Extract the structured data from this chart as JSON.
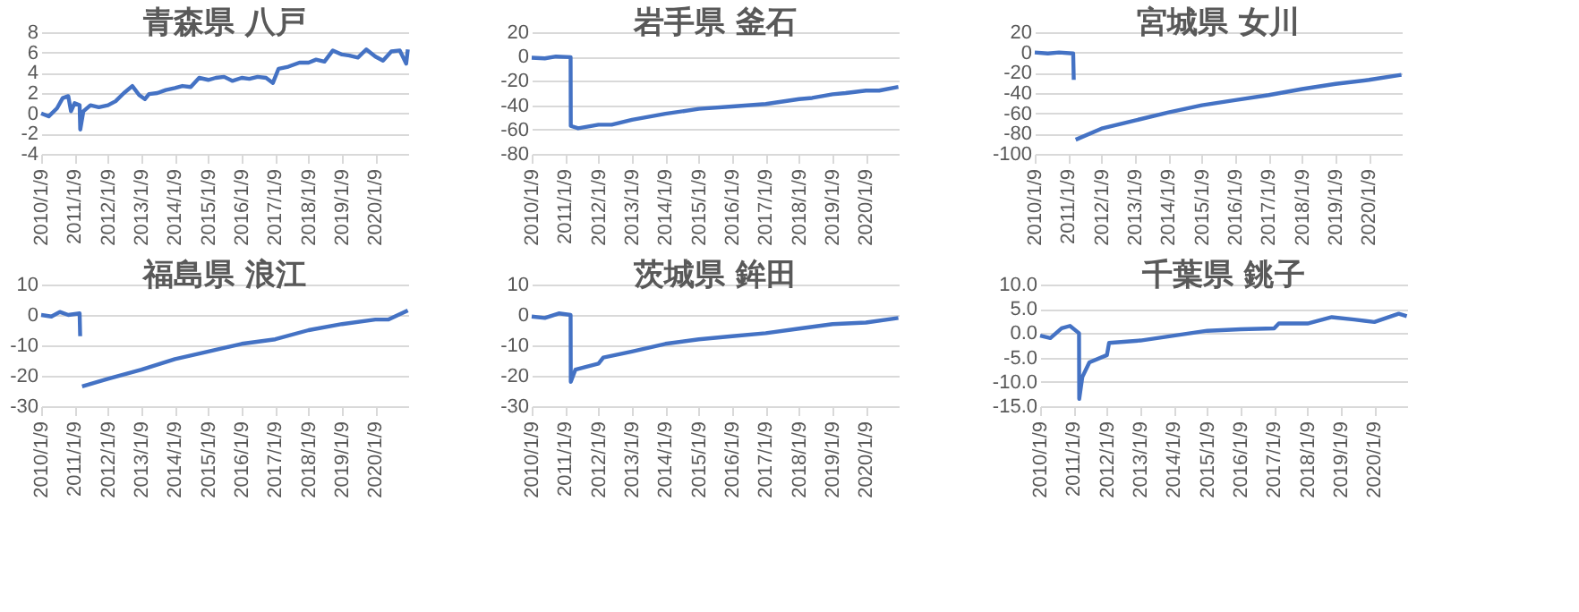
{
  "chart_data": [
    {
      "type": "line",
      "title": "青森県 八戸",
      "x": [
        "2010-01-09",
        "2010-04-01",
        "2010-07-01",
        "2010-09-01",
        "2010-11-01",
        "2010-12-01",
        "2011-01-09",
        "2011-03-05",
        "2011-03-12",
        "2011-04-15",
        "2011-07-01",
        "2011-10-01",
        "2012-01-09",
        "2012-04-01",
        "2012-07-01",
        "2012-10-01",
        "2012-12-15",
        "2013-02-15",
        "2013-04-01",
        "2013-07-01",
        "2013-10-01",
        "2014-01-09",
        "2014-04-01",
        "2014-07-01",
        "2014-10-01",
        "2015-01-09",
        "2015-04-01",
        "2015-07-01",
        "2015-10-01",
        "2016-01-09",
        "2016-04-01",
        "2016-07-01",
        "2016-10-01",
        "2016-12-15",
        "2017-02-15",
        "2017-06-01",
        "2017-10-01",
        "2018-01-09",
        "2018-04-01",
        "2018-07-01",
        "2018-10-01",
        "2019-01-09",
        "2019-04-01",
        "2019-07-01",
        "2019-10-01",
        "2020-01-09",
        "2020-04-01",
        "2020-07-01",
        "2020-10-01",
        "2020-12-10",
        "2020-12-28"
      ],
      "series": [
        {
          "color": "#4472c4",
          "values": [
            0,
            -0.3,
            0.5,
            1.5,
            1.7,
            0.2,
            1.0,
            0.8,
            -1.6,
            0.2,
            0.8,
            0.6,
            0.8,
            1.2,
            2.0,
            2.7,
            1.8,
            1.4,
            1.9,
            2.0,
            2.3,
            2.5,
            2.7,
            2.6,
            3.5,
            3.3,
            3.5,
            3.6,
            3.2,
            3.5,
            3.4,
            3.6,
            3.5,
            3.0,
            4.4,
            4.6,
            5.0,
            5.0,
            5.3,
            5.1,
            6.2,
            5.8,
            5.7,
            5.5,
            6.3,
            5.6,
            5.2,
            6.1,
            6.2,
            4.9,
            6.3
          ]
        }
      ],
      "xlim": [
        "2010-01-09",
        "2021-01-01"
      ],
      "ylim": [
        -4,
        8
      ],
      "yticks": [
        -4,
        -2,
        0,
        2,
        4,
        6,
        8
      ],
      "xticks": [
        {
          "value": "2010-01-09",
          "label": "2010/1/9"
        },
        {
          "value": "2011-01-09",
          "label": "2011/1/9"
        },
        {
          "value": "2012-01-09",
          "label": "2012/1/9"
        },
        {
          "value": "2013-01-09",
          "label": "2013/1/9"
        },
        {
          "value": "2014-01-09",
          "label": "2014/1/9"
        },
        {
          "value": "2015-01-09",
          "label": "2015/1/9"
        },
        {
          "value": "2016-01-09",
          "label": "2016/1/9"
        },
        {
          "value": "2017-01-09",
          "label": "2017/1/9"
        },
        {
          "value": "2018-01-09",
          "label": "2018/1/9"
        },
        {
          "value": "2019-01-09",
          "label": "2019/1/9"
        },
        {
          "value": "2020-01-09",
          "label": "2020/1/9"
        }
      ],
      "grid": "y"
    },
    {
      "type": "line",
      "title": "岩手県 釜石",
      "x": [
        "2010-01-09",
        "2010-06-01",
        "2010-10-01",
        "2011-03-10",
        "2011-03-12",
        "2011-06-01",
        "2012-01-09",
        "2012-06-01",
        "2013-01-09",
        "2014-01-09",
        "2015-01-09",
        "2016-01-09",
        "2017-01-09",
        "2018-01-09",
        "2018-06-01",
        "2019-01-09",
        "2019-06-01",
        "2020-01-09",
        "2020-06-01",
        "2020-12-28"
      ],
      "series": [
        {
          "color": "#4472c4",
          "values": [
            -1,
            -1.5,
            0,
            -0.5,
            -57,
            -59,
            -56,
            -56,
            -52,
            -47,
            -43,
            -41,
            -39,
            -35,
            -34,
            -31,
            -30,
            -28,
            -28,
            -25
          ]
        }
      ],
      "xlim": [
        "2010-01-09",
        "2021-01-01"
      ],
      "ylim": [
        -80,
        20
      ],
      "yticks": [
        -80,
        -60,
        -40,
        -20,
        0,
        20
      ],
      "xticks": [
        {
          "value": "2010-01-09",
          "label": "2010/1/9"
        },
        {
          "value": "2011-01-09",
          "label": "2011/1/9"
        },
        {
          "value": "2012-01-09",
          "label": "2012/1/9"
        },
        {
          "value": "2013-01-09",
          "label": "2013/1/9"
        },
        {
          "value": "2014-01-09",
          "label": "2014/1/9"
        },
        {
          "value": "2015-01-09",
          "label": "2015/1/9"
        },
        {
          "value": "2016-01-09",
          "label": "2016/1/9"
        },
        {
          "value": "2017-01-09",
          "label": "2017/1/9"
        },
        {
          "value": "2018-01-09",
          "label": "2018/1/9"
        },
        {
          "value": "2019-01-09",
          "label": "2019/1/9"
        },
        {
          "value": "2020-01-09",
          "label": "2020/1/9"
        }
      ],
      "grid": "y"
    },
    {
      "type": "line",
      "title": "宮城県 女川",
      "x": [
        "2010-01-09",
        "2010-06-01",
        "2010-10-01",
        "2011-03-05",
        "2011-03-11",
        "2011-03-20",
        "2011-04-01",
        "2012-01-09",
        "2013-01-09",
        "2014-01-09",
        "2015-01-09",
        "2016-01-09",
        "2017-01-09",
        "2018-01-09",
        "2019-01-09",
        "2020-01-09",
        "2020-12-28"
      ],
      "series": [
        {
          "color": "#4472c4",
          "values": [
            0,
            -1,
            0,
            -1,
            -27,
            null,
            -86,
            -75,
            -67,
            -59,
            -52,
            -47,
            -42,
            -36,
            -31,
            -27,
            -22
          ]
        }
      ],
      "xlim": [
        "2010-01-09",
        "2021-01-01"
      ],
      "ylim": [
        -100,
        20
      ],
      "yticks": [
        -100,
        -80,
        -60,
        -40,
        -20,
        0,
        20
      ],
      "xticks": [
        {
          "value": "2010-01-09",
          "label": "2010/1/9"
        },
        {
          "value": "2011-01-09",
          "label": "2011/1/9"
        },
        {
          "value": "2012-01-09",
          "label": "2012/1/9"
        },
        {
          "value": "2013-01-09",
          "label": "2013/1/9"
        },
        {
          "value": "2014-01-09",
          "label": "2014/1/9"
        },
        {
          "value": "2015-01-09",
          "label": "2015/1/9"
        },
        {
          "value": "2016-01-09",
          "label": "2016/1/9"
        },
        {
          "value": "2017-01-09",
          "label": "2017/1/9"
        },
        {
          "value": "2018-01-09",
          "label": "2018/1/9"
        },
        {
          "value": "2019-01-09",
          "label": "2019/1/9"
        },
        {
          "value": "2020-01-09",
          "label": "2020/1/9"
        }
      ],
      "grid": "y"
    },
    {
      "type": "line",
      "title": "福島県 浪江",
      "x": [
        "2010-01-09",
        "2010-05-01",
        "2010-08-01",
        "2010-11-01",
        "2011-03-05",
        "2011-03-11",
        "2011-03-20",
        "2011-04-01",
        "2012-01-09",
        "2013-01-09",
        "2014-01-09",
        "2015-01-09",
        "2016-01-09",
        "2017-01-09",
        "2018-01-09",
        "2019-01-09",
        "2020-01-09",
        "2020-06-01",
        "2020-12-28"
      ],
      "series": [
        {
          "color": "#4472c4",
          "values": [
            0,
            -0.5,
            1,
            0,
            0.5,
            -7,
            null,
            -23.5,
            -21,
            -18,
            -14.5,
            -12,
            -9.5,
            -8,
            -5,
            -3,
            -1.5,
            -1.5,
            1.5
          ]
        }
      ],
      "xlim": [
        "2010-01-09",
        "2021-01-01"
      ],
      "ylim": [
        -30,
        10
      ],
      "yticks": [
        -30,
        -20,
        -10,
        0,
        10
      ],
      "xticks": [
        {
          "value": "2010-01-09",
          "label": "2010/1/9"
        },
        {
          "value": "2011-01-09",
          "label": "2011/1/9"
        },
        {
          "value": "2012-01-09",
          "label": "2012/1/9"
        },
        {
          "value": "2013-01-09",
          "label": "2013/1/9"
        },
        {
          "value": "2014-01-09",
          "label": "2014/1/9"
        },
        {
          "value": "2015-01-09",
          "label": "2015/1/9"
        },
        {
          "value": "2016-01-09",
          "label": "2016/1/9"
        },
        {
          "value": "2017-01-09",
          "label": "2017/1/9"
        },
        {
          "value": "2018-01-09",
          "label": "2018/1/9"
        },
        {
          "value": "2019-01-09",
          "label": "2019/1/9"
        },
        {
          "value": "2020-01-09",
          "label": "2020/1/9"
        }
      ],
      "grid": "y"
    },
    {
      "type": "line",
      "title": "茨城県 鉾田",
      "x": [
        "2010-01-09",
        "2010-06-01",
        "2010-11-01",
        "2011-03-10",
        "2011-03-12",
        "2011-05-01",
        "2012-01-09",
        "2012-03-01",
        "2013-01-09",
        "2014-01-09",
        "2015-01-09",
        "2016-01-09",
        "2017-01-09",
        "2018-01-09",
        "2019-01-09",
        "2020-01-09",
        "2020-12-28"
      ],
      "series": [
        {
          "color": "#4472c4",
          "values": [
            -0.5,
            -1,
            0.5,
            0,
            -22,
            -18,
            -16,
            -14,
            -12,
            -9.5,
            -8,
            -7,
            -6,
            -4.5,
            -3,
            -2.5,
            -1
          ]
        }
      ],
      "xlim": [
        "2010-01-09",
        "2021-01-01"
      ],
      "ylim": [
        -30,
        10
      ],
      "yticks": [
        -30,
        -20,
        -10,
        0,
        10
      ],
      "xticks": [
        {
          "value": "2010-01-09",
          "label": "2010/1/9"
        },
        {
          "value": "2011-01-09",
          "label": "2011/1/9"
        },
        {
          "value": "2012-01-09",
          "label": "2012/1/9"
        },
        {
          "value": "2013-01-09",
          "label": "2013/1/9"
        },
        {
          "value": "2014-01-09",
          "label": "2014/1/9"
        },
        {
          "value": "2015-01-09",
          "label": "2015/1/9"
        },
        {
          "value": "2016-01-09",
          "label": "2016/1/9"
        },
        {
          "value": "2017-01-09",
          "label": "2017/1/9"
        },
        {
          "value": "2018-01-09",
          "label": "2018/1/9"
        },
        {
          "value": "2019-01-09",
          "label": "2019/1/9"
        },
        {
          "value": "2020-01-09",
          "label": "2020/1/9"
        }
      ],
      "grid": "y"
    },
    {
      "type": "line",
      "title": "千葉県 銚子",
      "x": [
        "2010-01-09",
        "2010-05-01",
        "2010-09-01",
        "2010-12-01",
        "2011-03-10",
        "2011-03-12",
        "2011-04-15",
        "2011-07-01",
        "2012-01-09",
        "2012-02-01",
        "2013-01-09",
        "2014-01-09",
        "2015-01-09",
        "2016-01-09",
        "2017-01-09",
        "2017-03-01",
        "2018-01-09",
        "2018-10-01",
        "2019-06-01",
        "2020-01-09",
        "2020-10-01",
        "2020-12-28"
      ],
      "series": [
        {
          "color": "#4472c4",
          "values": [
            -0.5,
            -1,
            1,
            1.5,
            0,
            -13.5,
            -9,
            -6,
            -4.5,
            -2,
            -1.5,
            -0.5,
            0.5,
            0.8,
            1,
            2,
            2,
            3.3,
            2.8,
            2.3,
            4,
            3.5
          ]
        }
      ],
      "xlim": [
        "2010-01-09",
        "2021-01-01"
      ],
      "ylim": [
        -15,
        10
      ],
      "yticks": [
        {
          "value": -15,
          "label": "-15.0"
        },
        {
          "value": -10,
          "label": "-10.0"
        },
        {
          "value": -5,
          "label": "-5.0"
        },
        {
          "value": 0,
          "label": "0.0"
        },
        {
          "value": 5,
          "label": "5.0"
        },
        {
          "value": 10,
          "label": "10.0"
        }
      ],
      "xticks": [
        {
          "value": "2010-01-09",
          "label": "2010/1/9"
        },
        {
          "value": "2011-01-09",
          "label": "2011/1/9"
        },
        {
          "value": "2012-01-09",
          "label": "2012/1/9"
        },
        {
          "value": "2013-01-09",
          "label": "2013/1/9"
        },
        {
          "value": "2014-01-09",
          "label": "2014/1/9"
        },
        {
          "value": "2015-01-09",
          "label": "2015/1/9"
        },
        {
          "value": "2016-01-09",
          "label": "2016/1/9"
        },
        {
          "value": "2017-01-09",
          "label": "2017/1/9"
        },
        {
          "value": "2018-01-09",
          "label": "2018/1/9"
        },
        {
          "value": "2019-01-09",
          "label": "2019/1/9"
        },
        {
          "value": "2020-01-09",
          "label": "2020/1/9"
        }
      ],
      "grid": "y"
    }
  ]
}
